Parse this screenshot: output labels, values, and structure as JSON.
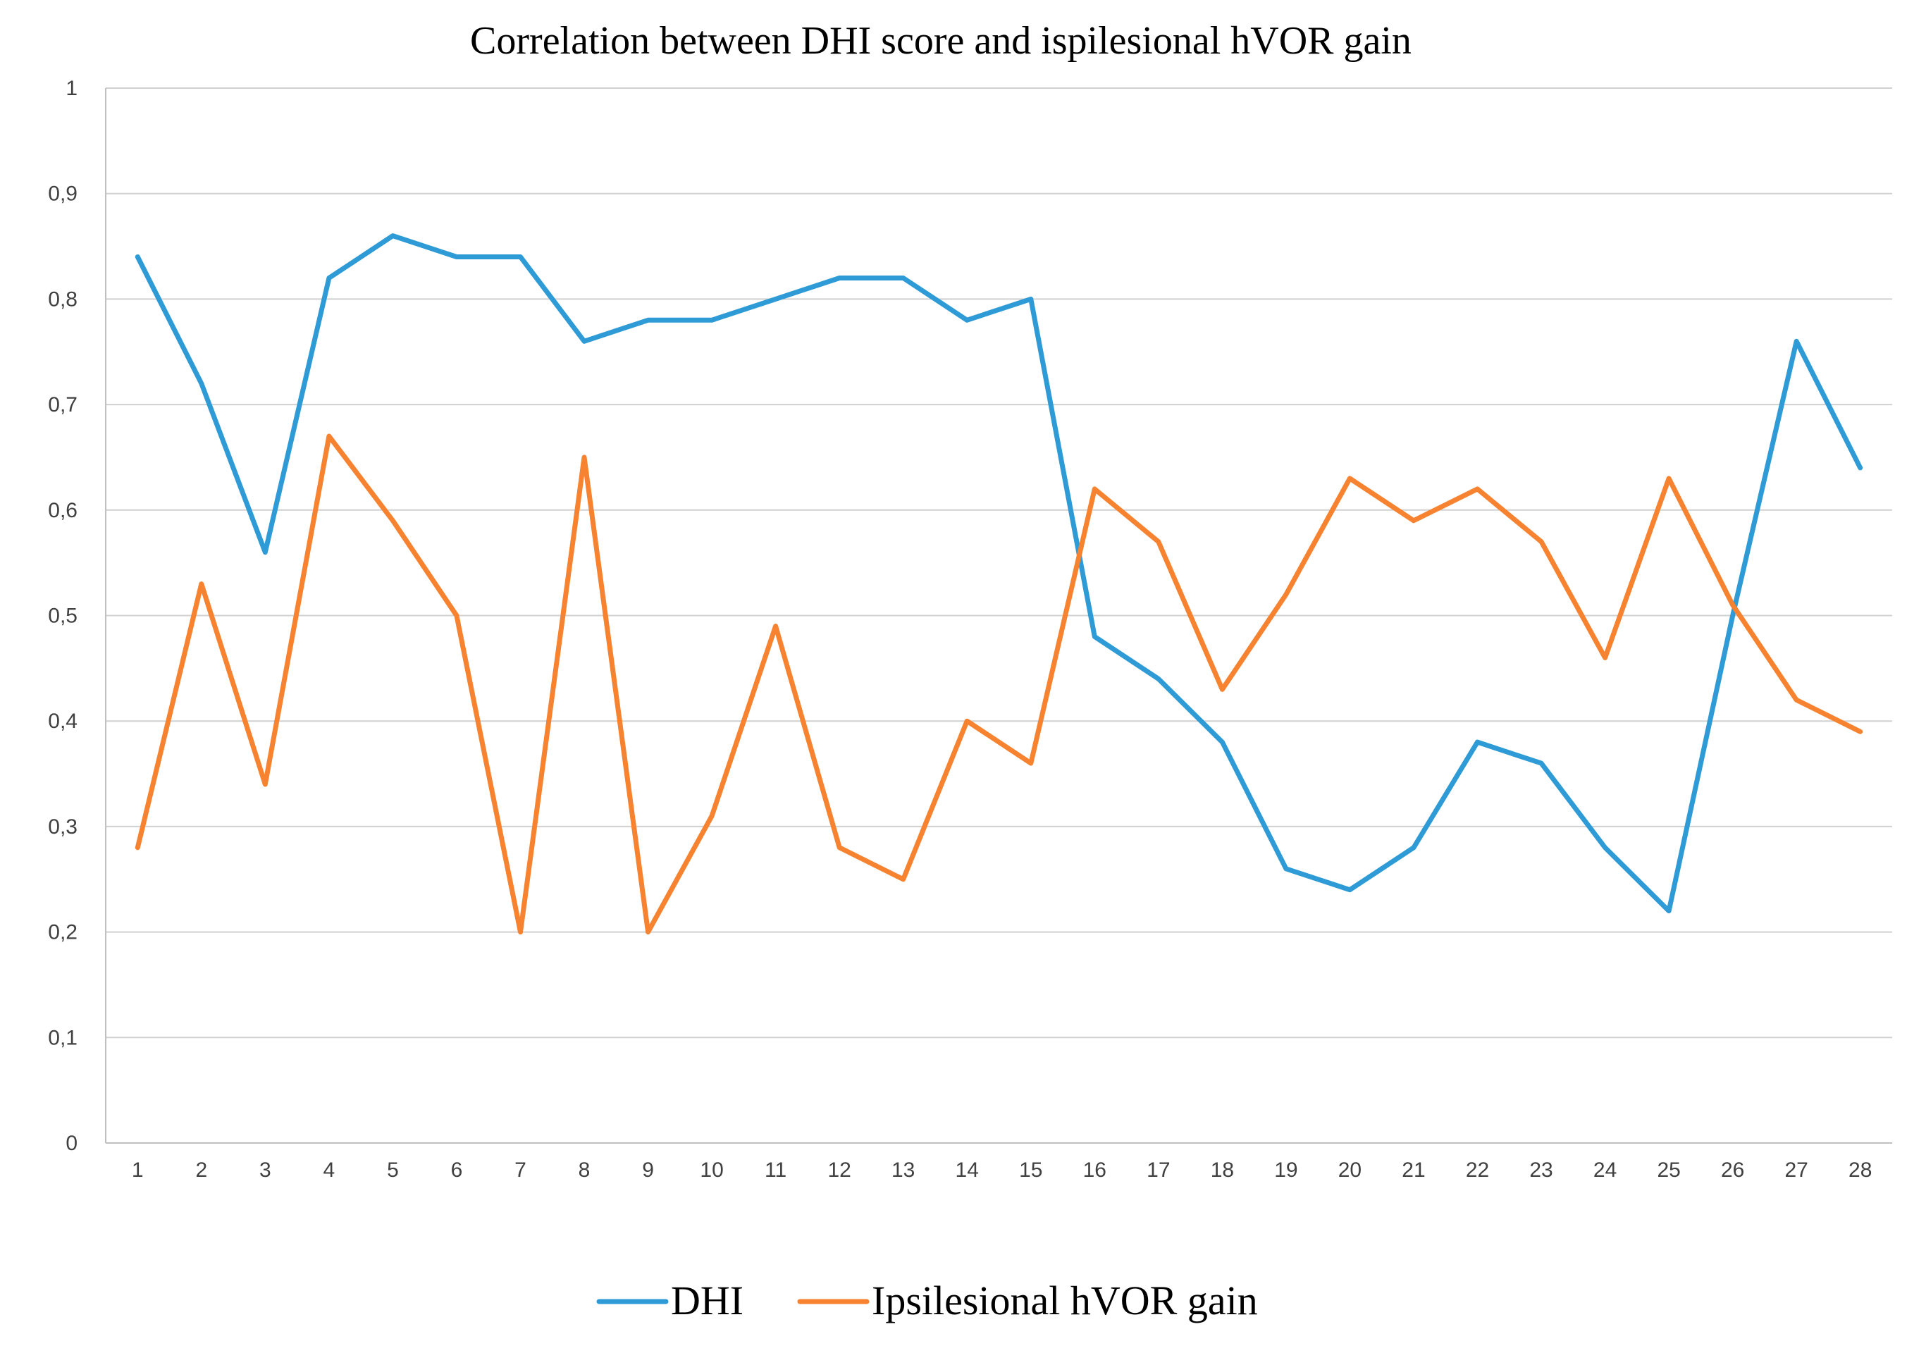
{
  "chart_data": {
    "type": "line",
    "title": "Correlation  between  DHI score and ispilesional  hVOR gain",
    "xlabel": "",
    "ylabel": "",
    "categories": [
      "1",
      "2",
      "3",
      "4",
      "5",
      "6",
      "7",
      "8",
      "9",
      "10",
      "11",
      "12",
      "13",
      "14",
      "15",
      "16",
      "17",
      "18",
      "19",
      "20",
      "21",
      "22",
      "23",
      "24",
      "25",
      "26",
      "27",
      "28"
    ],
    "ylim": [
      0,
      1
    ],
    "yticks": [
      0,
      0.1,
      0.2,
      0.3,
      0.4,
      0.5,
      0.6,
      0.7,
      0.8,
      0.9,
      1
    ],
    "ytick_labels": [
      "0",
      "0,1",
      "0,2",
      "0,3",
      "0,4",
      "0,5",
      "0,6",
      "0,7",
      "0,8",
      "0,9",
      "1"
    ],
    "grid": true,
    "legend_position": "bottom",
    "series": [
      {
        "name": "DHI",
        "color": "#2E9BD6",
        "values": [
          0.84,
          0.72,
          0.56,
          0.82,
          0.86,
          0.84,
          0.84,
          0.76,
          0.78,
          0.78,
          0.8,
          0.82,
          0.82,
          0.78,
          0.8,
          0.48,
          0.44,
          0.38,
          0.26,
          0.24,
          0.28,
          0.38,
          0.36,
          0.28,
          0.22,
          0.5,
          0.76,
          0.64
        ]
      },
      {
        "name": "Ipsilesional hVOR gain",
        "color": "#F7822F",
        "values": [
          0.28,
          0.53,
          0.34,
          0.67,
          0.59,
          0.5,
          0.2,
          0.65,
          0.2,
          0.31,
          0.49,
          0.28,
          0.25,
          0.4,
          0.36,
          0.62,
          0.57,
          0.43,
          0.52,
          0.63,
          0.59,
          0.62,
          0.57,
          0.46,
          0.63,
          0.51,
          0.42,
          0.39
        ]
      }
    ]
  }
}
